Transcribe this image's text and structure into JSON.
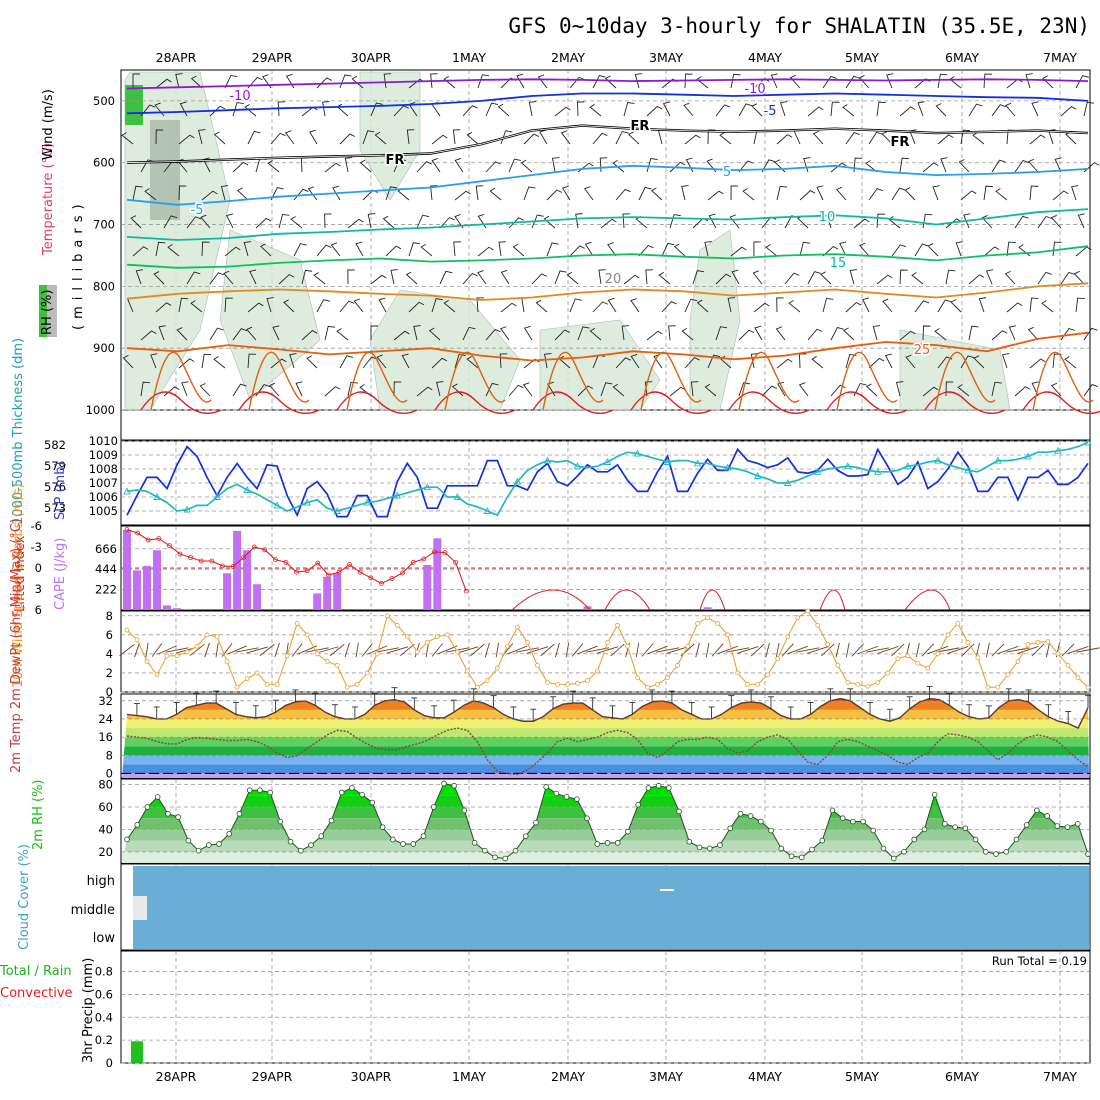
{
  "title": "GFS 0~10day 3-hourly for SHALATIN (35.5E, 23N)",
  "dates": [
    "28APR",
    "29APR",
    "30APR",
    "1MAY",
    "2MAY",
    "3MAY",
    "4MAY",
    "5MAY",
    "6MAY",
    "7MAY"
  ],
  "colors": {
    "purple": "#8a1bd0",
    "blue": "#1030e0",
    "lightblue": "#2a9ee8",
    "teal": "#10b8a0",
    "green": "#10c060",
    "orange": "#e08a20",
    "darkorange": "#e06010",
    "red": "#e02020",
    "cyan": "#20b8c0",
    "cape": "#c070f0",
    "windorange": "#f0a030",
    "rhgreen": "#10c010",
    "cloud": "#6aaed6"
  },
  "chart_data": [
    {
      "type": "contour",
      "panel": "upper-air",
      "ylabel_rh": "RH (%)",
      "ylabel_temp": "Temperature (°C)",
      "ylabel_wind": "Wind (m/s)",
      "ylabel_pressure": "(millibars)",
      "yticks": [
        "500",
        "600",
        "700",
        "800",
        "900",
        "1000"
      ],
      "ylim": [
        450,
        1000
      ],
      "contour_labels": [
        {
          "text": "-10",
          "color": "purple"
        },
        {
          "text": "-10",
          "color": "purple"
        },
        {
          "text": "-5",
          "color": "blue"
        },
        {
          "text": "-5",
          "color": "lightblue"
        },
        {
          "text": "FR",
          "color": "black"
        },
        {
          "text": "FR",
          "color": "black"
        },
        {
          "text": "FR",
          "color": "black"
        },
        {
          "text": "5",
          "color": "lightblue"
        },
        {
          "text": "10",
          "color": "teal"
        },
        {
          "text": "15",
          "color": "teal"
        },
        {
          "text": "20",
          "color": "gray"
        },
        {
          "text": "25",
          "color": "darkorange"
        }
      ],
      "isotherms": [
        {
          "name": "-10",
          "color": "purple",
          "values": [
            480,
            478,
            476,
            474,
            472,
            470,
            468,
            466,
            465,
            466,
            468,
            467,
            466,
            465,
            466,
            467,
            466,
            465,
            466,
            468
          ]
        },
        {
          "name": "-5",
          "color": "blue",
          "values": [
            520,
            518,
            515,
            512,
            510,
            508,
            505,
            500,
            492,
            488,
            488,
            490,
            492,
            490,
            488,
            490,
            492,
            494,
            495,
            500
          ]
        },
        {
          "name": "FR",
          "color": "black",
          "values": [
            600,
            598,
            595,
            592,
            590,
            588,
            585,
            570,
            548,
            540,
            545,
            548,
            550,
            548,
            545,
            548,
            552,
            550,
            548,
            552
          ]
        },
        {
          "name": "5",
          "color": "lightblue",
          "values": [
            660,
            668,
            662,
            655,
            650,
            645,
            640,
            630,
            620,
            610,
            605,
            608,
            612,
            610,
            605,
            615,
            620,
            618,
            615,
            610
          ]
        },
        {
          "name": "10",
          "color": "teal",
          "values": [
            720,
            725,
            722,
            715,
            712,
            708,
            705,
            700,
            695,
            690,
            688,
            690,
            692,
            688,
            685,
            690,
            700,
            690,
            680,
            675
          ]
        },
        {
          "name": "15",
          "color": "green",
          "values": [
            765,
            770,
            768,
            762,
            758,
            755,
            760,
            758,
            755,
            750,
            748,
            752,
            755,
            750,
            748,
            752,
            758,
            750,
            745,
            735
          ]
        },
        {
          "name": "20",
          "color": "orange",
          "values": [
            820,
            812,
            808,
            805,
            808,
            812,
            815,
            822,
            818,
            810,
            805,
            808,
            815,
            810,
            805,
            812,
            818,
            810,
            800,
            795
          ]
        },
        {
          "name": "25",
          "color": "darkorange",
          "values": [
            900,
            905,
            895,
            902,
            910,
            905,
            900,
            912,
            920,
            915,
            905,
            910,
            918,
            912,
            900,
            890,
            895,
            905,
            885,
            875
          ]
        }
      ]
    },
    {
      "type": "line",
      "panel": "pressure",
      "ylabel_left": "1000-500mb Thickness (dm)",
      "ylabel_right": "SLP (mb)",
      "yticks_left": [
        "582",
        "579",
        "576",
        "573"
      ],
      "yticks_right": [
        "1010",
        "1009",
        "1008",
        "1007",
        "1006",
        "1005"
      ],
      "ylim_right": [
        1004,
        1010
      ],
      "series": [
        {
          "color": "blue",
          "values": [
            1004.7,
            1006.1,
            1007.4,
            1007.4,
            1006.6,
            1008.3,
            1009.6,
            1008.9,
            1007.4,
            1006.1,
            1007.4,
            1008.4,
            1007.4,
            1006.6,
            1008.3,
            1008.2,
            1006.1,
            1004.7,
            1006.6,
            1007.1,
            1006.2,
            1004.6,
            1004.6,
            1006.1,
            1006.1,
            1004.6,
            1004.6,
            1007.1,
            1008.4,
            1007.4,
            1005.2,
            1005.2,
            1006.8,
            1006.8,
            1006.8,
            1006.8,
            1008.6,
            1008.6,
            1006.8,
            1006.8,
            1006.5,
            1007.8,
            1008.4,
            1007.1,
            1006.8,
            1007.5,
            1008.3,
            1007.8,
            1007.8,
            1008.3,
            1007.2,
            1006.4,
            1006.4,
            1007.8,
            1008.9,
            1006.4,
            1006.4,
            1007.7,
            1008.7,
            1007.9,
            1007.9,
            1009.4,
            1008.6,
            1008.4,
            1008.1,
            1008.3,
            1008.8,
            1007.8,
            1007.7,
            1007.9,
            1008.7,
            1007.9,
            1007.5,
            1007.5,
            1007.6,
            1009.4,
            1008.2,
            1006.9,
            1007.4,
            1008.5,
            1006.6,
            1007.1,
            1008.0,
            1009.2,
            1008.2,
            1006.4,
            1006.4,
            1007.4,
            1007.4,
            1005.8,
            1007.4,
            1007.4,
            1007.9,
            1006.9,
            1006.9,
            1007.4,
            1008.4
          ]
        },
        {
          "color": "cyan",
          "values": [
            1006.4,
            1006.5,
            1006.4,
            1006.0,
            1005.6,
            1005.0,
            1005.1,
            1005.4,
            1005.4,
            1006.0,
            1006.6,
            1006.9,
            1006.5,
            1006.2,
            1005.8,
            1005.4,
            1005.0,
            1005.3,
            1005.6,
            1005.8,
            1005.2,
            1005.0,
            1005.2,
            1005.4,
            1005.6,
            1005.7,
            1005.9,
            1006.1,
            1006.3,
            1006.5,
            1006.7,
            1006.7,
            1006.0,
            1006.0,
            1005.5,
            1005.3,
            1005.0,
            1004.7,
            1006.0,
            1007.1,
            1007.9,
            1008.3,
            1008.6,
            1008.5,
            1008.6,
            1008.2,
            1008.1,
            1008.2,
            1008.5,
            1008.9,
            1009.2,
            1009.1,
            1008.9,
            1008.7,
            1008.5,
            1008.6,
            1008.6,
            1008.4,
            1008.4,
            1008.2,
            1008.1,
            1008.0,
            1007.8,
            1007.5,
            1007.3,
            1007.0,
            1007.0,
            1007.2,
            1007.5,
            1007.8,
            1008.0,
            1008.1,
            1008.2,
            1008.1,
            1007.9,
            1007.8,
            1007.8,
            1007.9,
            1008.2,
            1008.3,
            1008.5,
            1008.6,
            1008.3,
            1008.1,
            1007.9,
            1007.8,
            1008.2,
            1008.6,
            1008.6,
            1008.7,
            1008.9,
            1009.2,
            1009.2,
            1009.3,
            1009.4,
            1009.6,
            1009.9
          ]
        }
      ]
    },
    {
      "type": "bar+line",
      "panel": "stability",
      "ylabel_li": "Lifted Index",
      "ylabel_cape": "CAPE (J/kg)",
      "yticks_li": [
        "-6",
        "-3",
        "0",
        "3",
        "6"
      ],
      "yticks_cape": [
        "666",
        "444",
        "222"
      ],
      "cape_values": [
        870,
        430,
        480,
        650,
        50,
        20,
        10,
        0,
        0,
        0,
        400,
        860,
        650,
        280,
        0,
        0,
        0,
        0,
        0,
        180,
        360,
        400,
        0,
        0,
        0,
        0,
        0,
        0,
        0,
        0,
        490,
        780,
        0,
        0,
        0,
        0,
        0,
        0,
        0,
        0,
        0,
        0,
        0,
        0,
        0,
        0,
        40,
        0,
        0,
        0,
        0,
        0,
        0,
        0,
        0,
        0,
        0,
        0,
        30,
        0,
        0,
        0,
        0,
        0,
        0,
        0,
        0,
        0,
        0,
        0,
        0,
        0,
        0,
        0,
        0,
        0,
        0,
        0,
        0,
        0,
        0,
        0,
        0,
        0,
        0,
        0,
        0,
        0,
        0,
        0,
        0,
        0,
        0,
        0,
        0,
        0,
        0
      ],
      "li_values": [
        -5.5,
        -5.0,
        -4.0,
        -4.2,
        -3.2,
        -2.0,
        -1.5,
        -1.0,
        -1.0,
        -0.3,
        -0.2,
        -1.5,
        -3.0,
        -2.6,
        -1.2,
        -0.8,
        0.6,
        0.4,
        -0.7,
        1.0,
        0.6,
        -0.5,
        0.6,
        1.4,
        2.2,
        1.5,
        0.7,
        -0.8,
        -1.3,
        -2.3,
        -2.2,
        -0.8,
        3.3
      ]
    },
    {
      "type": "line",
      "panel": "wind10m",
      "ylabel": "10m Wind Speed & Barbs (m/s)",
      "yticks": [
        "8",
        "6",
        "4",
        "2",
        "0"
      ],
      "ylim": [
        0,
        8.5
      ],
      "values": [
        6.5,
        5.5,
        3.2,
        1.8,
        3.8,
        3.8,
        4.2,
        4.8,
        6.0,
        5.8,
        3.2,
        0.5,
        1.4,
        2.0,
        0.8,
        0.8,
        3.8,
        7.2,
        6.0,
        4.0,
        3.2,
        2.8,
        0.5,
        0.8,
        2.0,
        4.0,
        8.0,
        7.0,
        5.8,
        4.2,
        5.2,
        5.8,
        6.0,
        4.2,
        2.2,
        0.5,
        1.2,
        2.5,
        4.8,
        6.8,
        5.2,
        2.8,
        1.0,
        0.8,
        0.8,
        0.9,
        1.2,
        2.2,
        5.2,
        7.0,
        4.8,
        1.5,
        0.5,
        0.8,
        1.5,
        2.8,
        4.8,
        7.2,
        7.8,
        7.2,
        6.0,
        2.0,
        0.8,
        0.8,
        1.8,
        3.5,
        5.8,
        7.8,
        8.5,
        7.0,
        5.0,
        2.8,
        1.0,
        0.8,
        0.6,
        1.0,
        2.0,
        3.5,
        3.8,
        3.0,
        2.5,
        4.0,
        6.0,
        7.2,
        5.2,
        3.6,
        0.5,
        0.5,
        1.8,
        3.2,
        5.0,
        5.2,
        5.3,
        4.0,
        2.8,
        1.5,
        0.5
      ]
    },
    {
      "type": "area+line",
      "panel": "temperature",
      "ylabel": "2m Temp 2m DewPt (6hr Min/Max) (°C)",
      "yticks": [
        "32",
        "24",
        "16",
        "8",
        "0"
      ],
      "ylim": [
        -2,
        35
      ],
      "temp": [
        26,
        25.5,
        25,
        24,
        24,
        26,
        29,
        30,
        31,
        31,
        28.5,
        26,
        25,
        24.5,
        25,
        27,
        30,
        31.5,
        32,
        30,
        27,
        25,
        24,
        24,
        26,
        30,
        32,
        32.5,
        31.5,
        28,
        25.5,
        24.5,
        24.5,
        27,
        30,
        32,
        31,
        29,
        26,
        24,
        23,
        23,
        25,
        28.5,
        30.5,
        31,
        31,
        28,
        25,
        24.5,
        24,
        26,
        29.5,
        31.5,
        32,
        31,
        28,
        26,
        24,
        24,
        26,
        29,
        31,
        31.5,
        31,
        28.5,
        25.5,
        24,
        24,
        26,
        29.5,
        32,
        33,
        32,
        29,
        26,
        24,
        23,
        24.5,
        28.5,
        31.5,
        33,
        32.5,
        30,
        27,
        25,
        24,
        24.5,
        29,
        32,
        32.5,
        31.5,
        28,
        25,
        23,
        22,
        20,
        29
      ],
      "dewpoint": [
        16.5,
        16,
        15.5,
        14,
        13,
        13,
        15,
        15.8,
        15.5,
        15,
        14.5,
        14.5,
        15,
        14,
        12,
        9,
        7,
        7.8,
        11,
        14,
        17,
        19,
        18.5,
        15.5,
        13,
        11,
        10.5,
        10.5,
        12,
        13,
        14.5,
        17,
        19,
        20,
        19,
        14,
        6,
        1,
        0,
        -0.5,
        1.5,
        5,
        9,
        14,
        15.5,
        14,
        15,
        16,
        18,
        19,
        18,
        15,
        9,
        7,
        10,
        14,
        15,
        15,
        16,
        15,
        11,
        9,
        10,
        14,
        16,
        17,
        15,
        10,
        5,
        4,
        8,
        14,
        15,
        14,
        12,
        10,
        8,
        5,
        4,
        7,
        9,
        14,
        17.5,
        17,
        16,
        14,
        10,
        6,
        9,
        13,
        16,
        17,
        16,
        14,
        10,
        6,
        3
      ]
    },
    {
      "type": "area",
      "panel": "rh",
      "ylabel": "2m RH (%)",
      "yticks": [
        "80",
        "60",
        "40",
        "20"
      ],
      "ylim": [
        10,
        85
      ],
      "values": [
        31,
        44,
        60,
        69,
        54,
        51,
        30,
        21,
        26,
        27,
        36,
        54,
        75,
        75,
        73,
        47,
        29,
        21,
        26,
        34,
        48,
        73,
        77,
        71,
        64,
        42,
        31,
        27,
        27,
        34,
        60,
        81,
        79,
        57,
        28,
        21,
        15,
        14,
        21,
        34,
        46,
        78,
        72,
        69,
        67,
        50,
        27,
        28,
        28,
        38,
        62,
        77,
        79,
        77,
        56,
        29,
        24,
        23,
        26,
        41,
        54,
        52,
        47,
        39,
        23,
        16,
        15,
        22,
        30,
        57,
        50,
        47,
        47,
        39,
        23,
        14,
        20,
        31,
        40,
        71,
        45,
        42,
        41,
        31,
        20,
        18,
        20,
        31,
        44,
        57,
        52,
        43,
        42,
        45,
        18
      ]
    },
    {
      "type": "area",
      "panel": "cloud",
      "ylabel": "Cloud Cover (%)",
      "levels": [
        "high",
        "middle",
        "low"
      ]
    },
    {
      "type": "bar",
      "panel": "precip",
      "ylabel_total": "Total / Rain",
      "ylabel_conv": "Convective",
      "ylabel": "3hr Precip (mm)",
      "run_total": "Run Total = 0.19",
      "yticks": [
        "0.8",
        "0.6",
        "0.4",
        "0.2",
        "0"
      ],
      "ylim": [
        0,
        0.98
      ],
      "values": [
        0.19
      ]
    }
  ]
}
